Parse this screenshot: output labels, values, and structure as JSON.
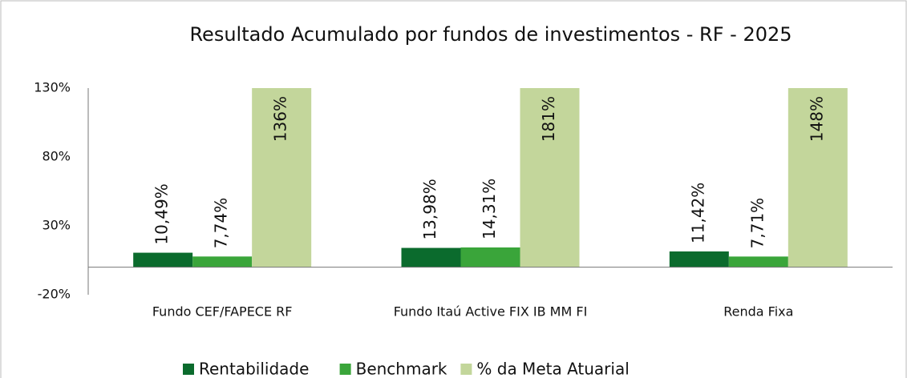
{
  "chart_data": {
    "type": "bar",
    "title": "Resultado Acumulado por fundos de investimentos - RF - 2025",
    "categories": [
      "Fundo CEF/FAPECE RF",
      "Fundo Itaú Active FIX IB MM FI",
      "Renda Fixa"
    ],
    "series": [
      {
        "name": "Rentabilidade",
        "color": "#0b6b2d",
        "values": [
          10.49,
          13.98,
          11.42
        ],
        "value_labels": [
          "10,49%",
          "13,98%",
          "11,42%"
        ]
      },
      {
        "name": "Benchmark",
        "color": "#3aa53a",
        "values": [
          7.74,
          14.31,
          7.71
        ],
        "value_labels": [
          "7,74%",
          "14,31%",
          "7,71%"
        ]
      },
      {
        "name": "% da Meta Atuarial",
        "color": "#c3d69b",
        "values": [
          136,
          181,
          148
        ],
        "value_labels": [
          "136%",
          "181%",
          "148%"
        ]
      }
    ],
    "ylim": [
      -20,
      130
    ],
    "yticks": [
      {
        "value": -20,
        "label": "-20%"
      },
      {
        "value": 30,
        "label": "30%"
      },
      {
        "value": 80,
        "label": "80%"
      },
      {
        "value": 130,
        "label": "130%"
      }
    ],
    "grid": false,
    "legend": "bottom"
  }
}
